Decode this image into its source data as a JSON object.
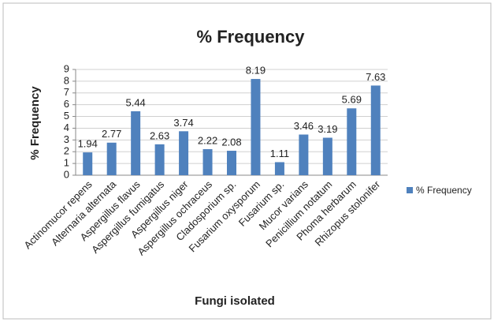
{
  "chart_data": {
    "type": "bar",
    "title": "% Frequency",
    "xlabel": "Fungi isolated",
    "ylabel": "% Frequency",
    "categories": [
      "Actinomucor repens",
      "Alternaria alternata",
      "Aspergillus flavus",
      "Aspergillus fumigatus",
      "Aspergillus niger",
      "Aspergillus ochraceus",
      "Cladosporium sp.",
      "Fusarium oxysporum",
      "Fusarium sp.",
      "Mucor varians",
      "Penicillium notatum",
      "Phoma herbarum",
      "Rhizopus stolonifer"
    ],
    "series": [
      {
        "name": "% Frequency",
        "color": "#4f81bd",
        "values": [
          1.94,
          2.77,
          5.44,
          2.63,
          3.74,
          2.22,
          2.08,
          8.19,
          1.11,
          3.46,
          3.19,
          5.69,
          7.63
        ]
      }
    ],
    "ylim": [
      0,
      9
    ],
    "yticks": [
      0,
      1,
      2,
      3,
      4,
      5,
      6,
      7,
      8,
      9
    ],
    "grid": true,
    "legend": "right"
  }
}
